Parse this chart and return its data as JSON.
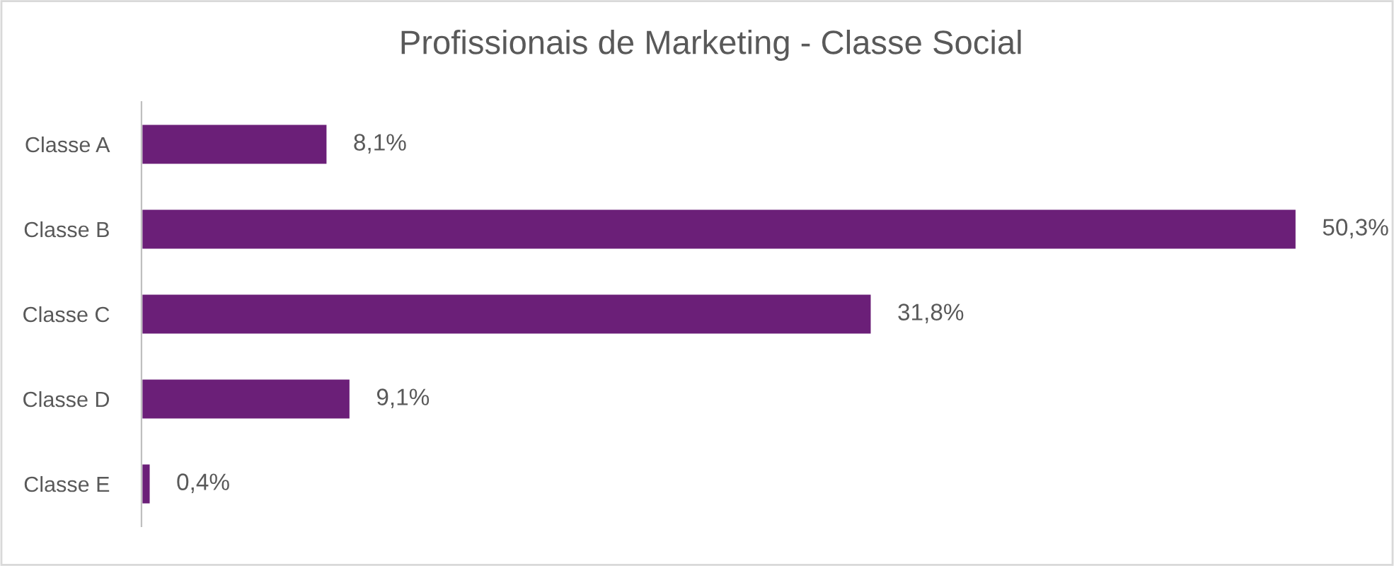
{
  "chart_data": {
    "type": "bar",
    "title": "Profissionais de Marketing - Classe Social",
    "orientation": "horizontal",
    "categories": [
      "Classe A",
      "Classe B",
      "Classe C",
      "Classe D",
      "Classe E"
    ],
    "values": [
      8.1,
      50.3,
      31.8,
      9.1,
      0.4
    ],
    "value_labels": [
      "8,1%",
      "50,3%",
      "31,8%",
      "9,1%",
      "0,4%"
    ],
    "color": "#6b1f78",
    "tick_labels": "y",
    "grid": false,
    "legend": false
  }
}
